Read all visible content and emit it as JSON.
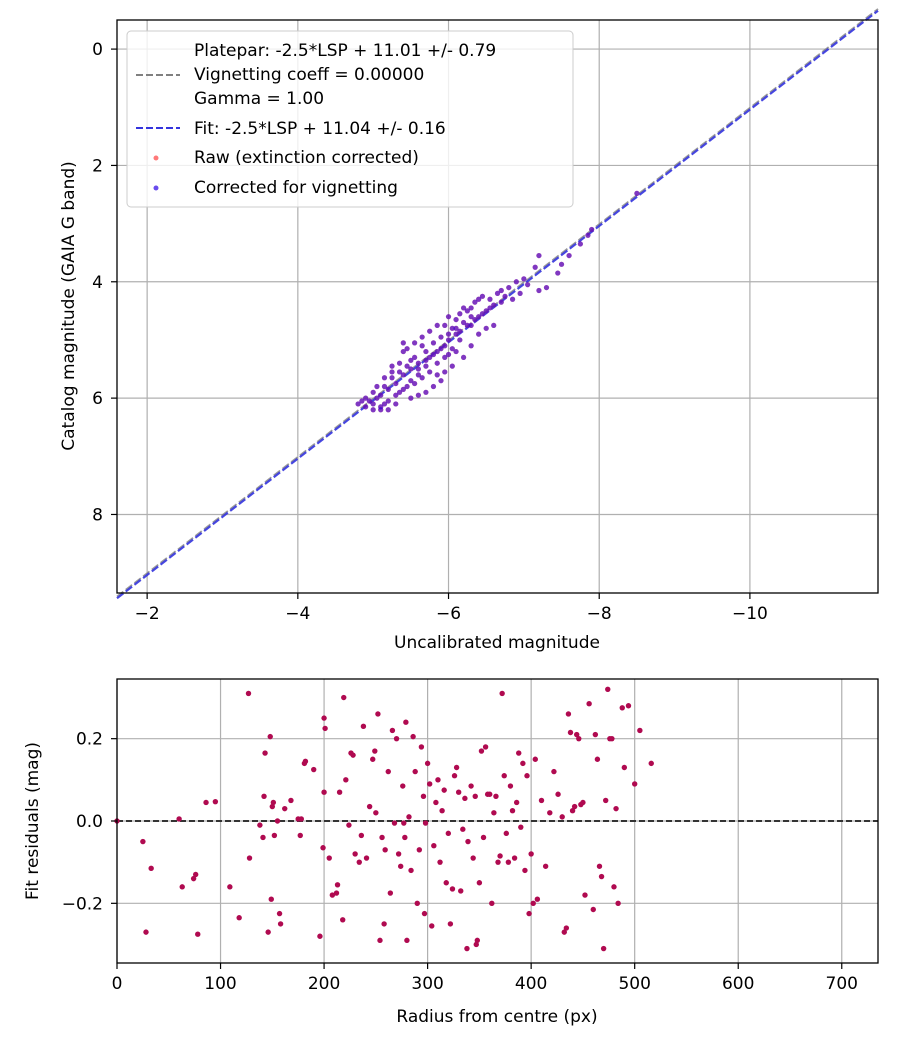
{
  "chart_data": [
    {
      "type": "scatter",
      "xlabel": "Uncalibrated magnitude",
      "ylabel": "Catalog magnitude (GAIA G band)",
      "xlim": [
        -1.6,
        -11.7
      ],
      "ylim": [
        9.35,
        -0.5
      ],
      "xticks": [
        -2,
        -4,
        -6,
        -8,
        -10
      ],
      "xtick_labels": [
        "−2",
        "−4",
        "−6",
        "−8",
        "−10"
      ],
      "yticks": [
        0,
        2,
        4,
        6,
        8
      ],
      "ytick_labels": [
        "0",
        "2",
        "4",
        "6",
        "8"
      ],
      "grid": true,
      "legend_position": "top-left",
      "legend": {
        "platepar_lines": [
          "Platepar: -2.5*LSP + 11.01 +/- 0.79",
          "Vignetting coeff = 0.00000",
          "Gamma = 1.00"
        ],
        "fit": "Fit: -2.5*LSP + 11.04 +/- 0.16",
        "raw": "Raw (extinction corrected)",
        "corrected": "Corrected for vignetting"
      },
      "colors": {
        "platepar": "#808080",
        "fit": "#3333dd",
        "raw": "#ff4040",
        "corrected": "#2a00e6"
      },
      "lines": [
        {
          "name": "Platepar",
          "slope": 1,
          "intercept": 11.01
        },
        {
          "name": "Fit",
          "slope": 1,
          "intercept": 11.04
        }
      ],
      "points": [
        [
          -8.5,
          2.48
        ],
        [
          -7.9,
          3.1
        ],
        [
          -7.85,
          3.2
        ],
        [
          -7.75,
          3.35
        ],
        [
          -7.6,
          3.55
        ],
        [
          -7.5,
          3.7
        ],
        [
          -7.45,
          3.85
        ],
        [
          -7.2,
          3.55
        ],
        [
          -7.15,
          3.75
        ],
        [
          -7.3,
          4.1
        ],
        [
          -7.2,
          4.15
        ],
        [
          -7.05,
          4.05
        ],
        [
          -7.0,
          3.95
        ],
        [
          -6.95,
          4.2
        ],
        [
          -6.9,
          4.0
        ],
        [
          -6.8,
          4.1
        ],
        [
          -6.75,
          4.25
        ],
        [
          -6.7,
          4.15
        ],
        [
          -6.6,
          4.4
        ],
        [
          -6.55,
          4.3
        ],
        [
          -6.5,
          4.5
        ],
        [
          -6.45,
          4.25
        ],
        [
          -6.4,
          4.6
        ],
        [
          -6.35,
          4.35
        ],
        [
          -6.3,
          4.6
        ],
        [
          -6.3,
          4.75
        ],
        [
          -6.25,
          4.5
        ],
        [
          -6.2,
          4.7
        ],
        [
          -6.15,
          4.85
        ],
        [
          -6.1,
          4.65
        ],
        [
          -6.05,
          4.8
        ],
        [
          -6.0,
          5.0
        ],
        [
          -6.0,
          4.9
        ],
        [
          -5.95,
          5.1
        ],
        [
          -5.9,
          4.95
        ],
        [
          -5.85,
          5.2
        ],
        [
          -5.8,
          5.05
        ],
        [
          -5.75,
          5.3
        ],
        [
          -5.7,
          5.2
        ],
        [
          -5.7,
          5.45
        ],
        [
          -5.65,
          5.1
        ],
        [
          -5.6,
          5.4
        ],
        [
          -5.6,
          5.6
        ],
        [
          -5.55,
          5.3
        ],
        [
          -5.5,
          5.5
        ],
        [
          -5.5,
          5.7
        ],
        [
          -5.45,
          5.45
        ],
        [
          -5.4,
          5.6
        ],
        [
          -5.4,
          5.85
        ],
        [
          -5.35,
          5.55
        ],
        [
          -5.3,
          5.75
        ],
        [
          -5.3,
          5.95
        ],
        [
          -5.25,
          5.65
        ],
        [
          -5.2,
          5.85
        ],
        [
          -5.2,
          6.05
        ],
        [
          -5.15,
          5.8
        ],
        [
          -5.15,
          6.1
        ],
        [
          -5.1,
          5.95
        ],
        [
          -5.1,
          6.15
        ],
        [
          -5.05,
          6.0
        ],
        [
          -5.0,
          6.1
        ],
        [
          -5.0,
          5.9
        ],
        [
          -4.95,
          6.05
        ],
        [
          -4.9,
          6.15
        ],
        [
          -4.85,
          6.05
        ],
        [
          -4.8,
          6.1
        ],
        [
          -5.6,
          5.95
        ],
        [
          -5.5,
          6.0
        ],
        [
          -5.7,
          5.9
        ],
        [
          -5.8,
          5.8
        ],
        [
          -5.9,
          5.7
        ],
        [
          -6.1,
          5.2
        ],
        [
          -6.2,
          5.3
        ],
        [
          -6.4,
          4.9
        ],
        [
          -6.5,
          4.8
        ],
        [
          -6.6,
          4.75
        ],
        [
          -6.3,
          5.1
        ],
        [
          -6.05,
          5.45
        ],
        [
          -5.95,
          5.55
        ],
        [
          -5.85,
          5.6
        ],
        [
          -6.15,
          5.0
        ],
        [
          -5.4,
          5.2
        ],
        [
          -5.35,
          5.4
        ],
        [
          -5.25,
          5.45
        ],
        [
          -5.45,
          5.15
        ],
        [
          -5.55,
          5.05
        ],
        [
          -5.65,
          4.95
        ],
        [
          -5.75,
          4.85
        ],
        [
          -5.85,
          4.75
        ],
        [
          -6.0,
          4.6
        ],
        [
          -6.2,
          4.45
        ],
        [
          -6.4,
          4.3
        ],
        [
          -6.65,
          4.2
        ],
        [
          -5.05,
          5.8
        ],
        [
          -5.15,
          5.65
        ],
        [
          -5.25,
          5.55
        ],
        [
          -5.35,
          5.9
        ],
        [
          -5.45,
          5.8
        ],
        [
          -5.55,
          5.75
        ],
        [
          -5.65,
          5.65
        ],
        [
          -5.75,
          5.55
        ],
        [
          -5.85,
          5.4
        ],
        [
          -5.95,
          5.3
        ],
        [
          -6.05,
          5.15
        ],
        [
          -6.1,
          4.9
        ],
        [
          -6.25,
          4.75
        ],
        [
          -6.35,
          4.65
        ],
        [
          -6.45,
          4.55
        ],
        [
          -6.55,
          4.45
        ],
        [
          -6.7,
          4.35
        ],
        [
          -6.85,
          4.3
        ],
        [
          -5.1,
          6.2
        ],
        [
          -5.2,
          6.2
        ],
        [
          -5.3,
          6.1
        ],
        [
          -4.9,
          6.0
        ],
        [
          -5.0,
          6.2
        ],
        [
          -5.6,
          5.5
        ],
        [
          -5.7,
          5.35
        ],
        [
          -5.8,
          5.25
        ],
        [
          -5.9,
          5.15
        ],
        [
          -6.0,
          5.25
        ],
        [
          -5.5,
          5.35
        ],
        [
          -5.4,
          5.05
        ],
        [
          -6.3,
          4.45
        ],
        [
          -6.15,
          4.55
        ],
        [
          -5.95,
          4.75
        ],
        [
          -6.1,
          4.8
        ]
      ],
      "series": [
        {
          "name": "Raw (extinction corrected)"
        },
        {
          "name": "Corrected for vignetting"
        }
      ]
    },
    {
      "type": "scatter",
      "xlabel": "Radius from centre (px)",
      "ylabel": "Fit residuals (mag)",
      "xlim": [
        0,
        735
      ],
      "ylim": [
        -0.345,
        0.345
      ],
      "xticks": [
        0,
        100,
        200,
        300,
        400,
        500,
        600,
        700
      ],
      "xtick_labels": [
        "0",
        "100",
        "200",
        "300",
        "400",
        "500",
        "600",
        "700"
      ],
      "yticks": [
        0.2,
        0.0,
        -0.2
      ],
      "ytick_labels": [
        "0.2",
        "0.0",
        "−0.2"
      ],
      "grid": true,
      "colors": {
        "points": "#b00a50",
        "zero_line": "#333333"
      },
      "points": [
        [
          0,
          0.0
        ],
        [
          25,
          -0.05
        ],
        [
          28,
          -0.27
        ],
        [
          33,
          -0.115
        ],
        [
          60,
          0.005
        ],
        [
          63,
          -0.16
        ],
        [
          74,
          -0.14
        ],
        [
          76,
          -0.13
        ],
        [
          78,
          -0.275
        ],
        [
          86,
          0.045
        ],
        [
          95,
          0.047
        ],
        [
          109,
          -0.16
        ],
        [
          118,
          -0.235
        ],
        [
          127,
          0.31
        ],
        [
          128,
          -0.09
        ],
        [
          138,
          -0.01
        ],
        [
          141,
          -0.04
        ],
        [
          142,
          0.06
        ],
        [
          143,
          0.165
        ],
        [
          146,
          -0.27
        ],
        [
          148,
          0.205
        ],
        [
          149,
          -0.19
        ],
        [
          150,
          0.035
        ],
        [
          151,
          0.045
        ],
        [
          152,
          -0.035
        ],
        [
          155,
          0.0
        ],
        [
          157,
          -0.225
        ],
        [
          158,
          -0.25
        ],
        [
          162,
          0.03
        ],
        [
          168,
          0.05
        ],
        [
          175,
          0.005
        ],
        [
          177,
          -0.035
        ],
        [
          178,
          0.005
        ],
        [
          181,
          0.14
        ],
        [
          182,
          0.145
        ],
        [
          190,
          0.125
        ],
        [
          196,
          -0.28
        ],
        [
          200,
          0.25
        ],
        [
          201,
          0.225
        ],
        [
          199,
          -0.065
        ],
        [
          200,
          0.07
        ],
        [
          205,
          -0.09
        ],
        [
          208,
          -0.18
        ],
        [
          212,
          -0.175
        ],
        [
          213,
          -0.155
        ],
        [
          215,
          0.07
        ],
        [
          218,
          -0.24
        ],
        [
          219,
          0.3
        ],
        [
          221,
          0.1
        ],
        [
          224,
          -0.01
        ],
        [
          226,
          0.165
        ],
        [
          228,
          0.16
        ],
        [
          230,
          -0.08
        ],
        [
          234,
          -0.1
        ],
        [
          236,
          -0.035
        ],
        [
          238,
          0.23
        ],
        [
          241,
          -0.09
        ],
        [
          244,
          0.035
        ],
        [
          247,
          0.15
        ],
        [
          249,
          0.17
        ],
        [
          250,
          0.02
        ],
        [
          252,
          0.26
        ],
        [
          254,
          -0.29
        ],
        [
          256,
          -0.04
        ],
        [
          258,
          -0.25
        ],
        [
          259,
          -0.07
        ],
        [
          262,
          0.12
        ],
        [
          264,
          -0.175
        ],
        [
          266,
          0.22
        ],
        [
          268,
          -0.005
        ],
        [
          270,
          0.2
        ],
        [
          272,
          -0.08
        ],
        [
          274,
          -0.11
        ],
        [
          276,
          0.085
        ],
        [
          277,
          -0.005
        ],
        [
          278,
          -0.04
        ],
        [
          279,
          0.24
        ],
        [
          280,
          -0.29
        ],
        [
          282,
          0.01
        ],
        [
          284,
          -0.12
        ],
        [
          286,
          0.205
        ],
        [
          288,
          0.12
        ],
        [
          290,
          -0.2
        ],
        [
          292,
          -0.07
        ],
        [
          294,
          0.18
        ],
        [
          296,
          0.06
        ],
        [
          297,
          -0.225
        ],
        [
          298,
          -0.005
        ],
        [
          300,
          0.14
        ],
        [
          302,
          0.09
        ],
        [
          304,
          -0.255
        ],
        [
          306,
          -0.06
        ],
        [
          308,
          0.045
        ],
        [
          310,
          0.1
        ],
        [
          312,
          -0.1
        ],
        [
          314,
          0.025
        ],
        [
          316,
          0.075
        ],
        [
          318,
          -0.15
        ],
        [
          320,
          -0.03
        ],
        [
          322,
          -0.25
        ],
        [
          324,
          -0.165
        ],
        [
          326,
          0.11
        ],
        [
          328,
          0.13
        ],
        [
          330,
          0.07
        ],
        [
          332,
          -0.17
        ],
        [
          334,
          -0.02
        ],
        [
          336,
          0.055
        ],
        [
          338,
          -0.31
        ],
        [
          339,
          -0.05
        ],
        [
          342,
          0.085
        ],
        [
          344,
          -0.09
        ],
        [
          346,
          0.06
        ],
        [
          347,
          -0.3
        ],
        [
          348,
          -0.29
        ],
        [
          350,
          -0.15
        ],
        [
          352,
          0.17
        ],
        [
          354,
          -0.04
        ],
        [
          356,
          0.18
        ],
        [
          358,
          0.065
        ],
        [
          360,
          0.065
        ],
        [
          362,
          -0.2
        ],
        [
          364,
          0.02
        ],
        [
          366,
          0.06
        ],
        [
          368,
          -0.1
        ],
        [
          370,
          -0.085
        ],
        [
          372,
          0.31
        ],
        [
          374,
          0.11
        ],
        [
          376,
          -0.03
        ],
        [
          378,
          -0.1
        ],
        [
          380,
          0.085
        ],
        [
          382,
          0.025
        ],
        [
          384,
          -0.09
        ],
        [
          386,
          0.045
        ],
        [
          388,
          0.165
        ],
        [
          390,
          -0.015
        ],
        [
          392,
          0.14
        ],
        [
          394,
          -0.12
        ],
        [
          396,
          0.11
        ],
        [
          398,
          -0.225
        ],
        [
          400,
          -0.08
        ],
        [
          402,
          -0.2
        ],
        [
          404,
          0.15
        ],
        [
          406,
          -0.19
        ],
        [
          410,
          0.05
        ],
        [
          414,
          -0.11
        ],
        [
          418,
          0.02
        ],
        [
          422,
          0.12
        ],
        [
          426,
          0.065
        ],
        [
          430,
          0.01
        ],
        [
          432,
          -0.27
        ],
        [
          434,
          -0.26
        ],
        [
          436,
          0.26
        ],
        [
          438,
          0.215
        ],
        [
          440,
          0.025
        ],
        [
          442,
          0.035
        ],
        [
          444,
          0.21
        ],
        [
          446,
          0.2
        ],
        [
          448,
          0.04
        ],
        [
          450,
          0.045
        ],
        [
          452,
          -0.18
        ],
        [
          456,
          0.285
        ],
        [
          460,
          -0.215
        ],
        [
          462,
          0.21
        ],
        [
          464,
          0.15
        ],
        [
          466,
          -0.11
        ],
        [
          468,
          -0.135
        ],
        [
          470,
          -0.31
        ],
        [
          472,
          0.05
        ],
        [
          474,
          0.32
        ],
        [
          476,
          0.2
        ],
        [
          478,
          0.2
        ],
        [
          480,
          -0.16
        ],
        [
          482,
          0.03
        ],
        [
          484,
          -0.2
        ],
        [
          488,
          0.275
        ],
        [
          490,
          0.13
        ],
        [
          494,
          0.28
        ],
        [
          500,
          0.09
        ],
        [
          505,
          0.22
        ],
        [
          516,
          0.14
        ]
      ]
    }
  ]
}
